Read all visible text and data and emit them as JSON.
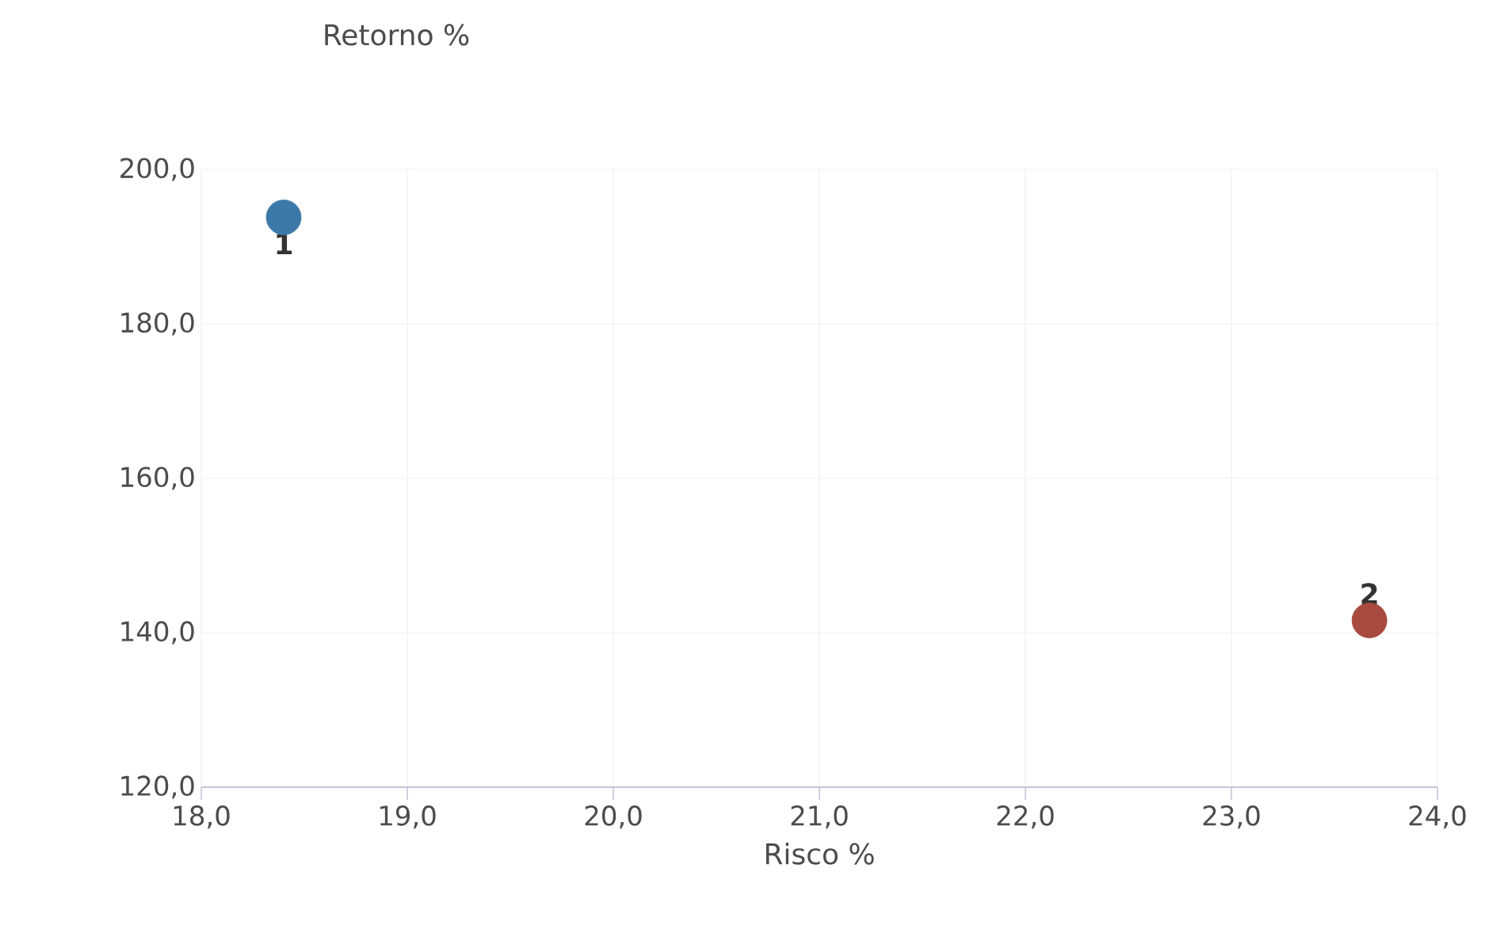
{
  "chart_data": {
    "type": "scatter",
    "xlabel": "Risco %",
    "ylabel": "Retorno %",
    "xlim": [
      18,
      24
    ],
    "ylim": [
      120,
      200
    ],
    "xticks": [
      {
        "value": 18,
        "label": "18,0"
      },
      {
        "value": 19,
        "label": "19,0"
      },
      {
        "value": 20,
        "label": "20,0"
      },
      {
        "value": 21,
        "label": "21,0"
      },
      {
        "value": 22,
        "label": "22,0"
      },
      {
        "value": 23,
        "label": "23,0"
      },
      {
        "value": 24,
        "label": "24,0"
      }
    ],
    "yticks": [
      {
        "value": 120,
        "label": "120,0"
      },
      {
        "value": 140,
        "label": "140,0"
      },
      {
        "value": 160,
        "label": "160,0"
      },
      {
        "value": 180,
        "label": "180,0"
      },
      {
        "value": 200,
        "label": "200,0"
      }
    ],
    "grid": true,
    "series": [
      {
        "name": "1",
        "color": "#3d79a8",
        "x": [
          18.4
        ],
        "values": [
          193.8
        ]
      },
      {
        "name": "2",
        "color": "#a84a40",
        "x": [
          23.67
        ],
        "values": [
          141.6
        ]
      }
    ]
  }
}
